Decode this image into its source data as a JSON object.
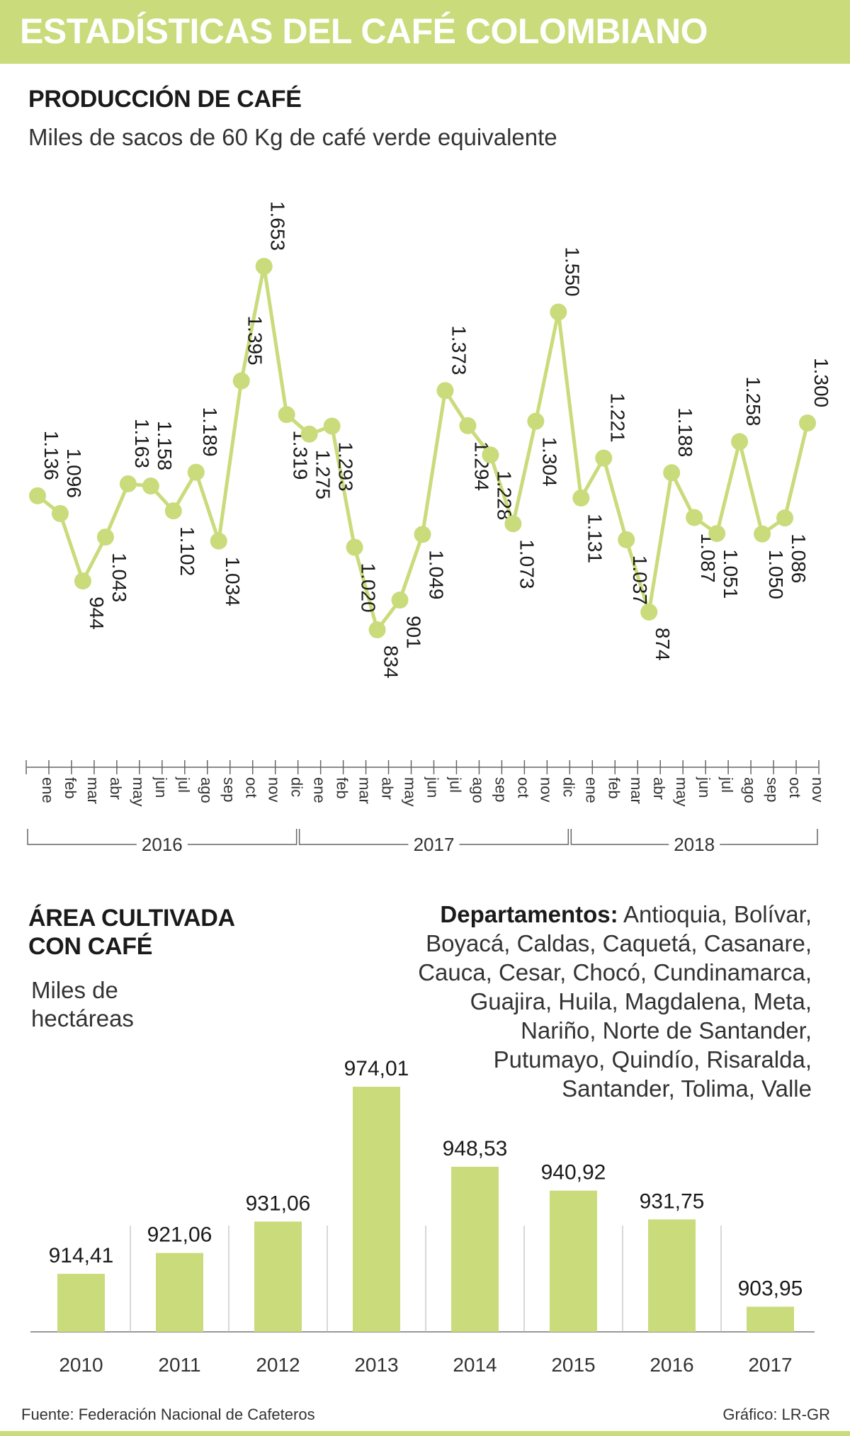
{
  "header": {
    "title": "ESTADÍSTICAS DEL CAFÉ COLOMBIANO"
  },
  "production": {
    "title": "PRODUCCIÓN DE CAFÉ",
    "subtitle": "Miles de sacos de 60 Kg de café verde equivalente"
  },
  "area": {
    "title_line1": "ÁREA CULTIVADA",
    "title_line2": "CON CAFÉ",
    "subtitle_line1": "Miles de",
    "subtitle_line2": "hectáreas"
  },
  "departments": {
    "label": "Departamentos:",
    "lines": [
      "Antioquia, Bolívar,",
      "Boyacá, Caldas, Caquetá, Casanare,",
      "Cauca, Cesar, Chocó, Cundinamarca,",
      "Guajira, Huila, Magdalena, Meta,",
      "Nariño, Norte de Santander,",
      "Putumayo, Quindío, Risaralda,",
      "Santander, Tolima, Valle"
    ]
  },
  "footer": {
    "source": "Fuente: Federación Nacional de Cafeteros",
    "credit": "Gráfico: LR-GR"
  },
  "colors": {
    "accent": "#c9db7a",
    "line": "#c9db7a",
    "text": "#1a1a1a"
  },
  "chart_data": [
    {
      "type": "line",
      "title": "PRODUCCIÓN DE CAFÉ",
      "ylabel": "Miles de sacos de 60 Kg de café verde equivalente",
      "x": [
        "ene",
        "feb",
        "mar",
        "abr",
        "may",
        "jun",
        "jul",
        "ago",
        "sep",
        "oct",
        "nov",
        "dic",
        "ene",
        "feb",
        "mar",
        "abr",
        "may",
        "jun",
        "jul",
        "ago",
        "sep",
        "oct",
        "nov",
        "dic",
        "ene",
        "feb",
        "mar",
        "abr",
        "may",
        "jun",
        "jul",
        "ago",
        "sep",
        "oct",
        "nov"
      ],
      "values": [
        1136,
        1096,
        944,
        1043,
        1163,
        1158,
        1102,
        1189,
        1034,
        1395,
        1653,
        1319,
        1275,
        1293,
        1020,
        834,
        901,
        1049,
        1373,
        1294,
        1228,
        1073,
        1304,
        1550,
        1131,
        1221,
        1037,
        874,
        1188,
        1087,
        1051,
        1258,
        1050,
        1086,
        1300
      ],
      "labels": [
        "1.136",
        "1.096",
        "944",
        "1.043",
        "1.163",
        "1.158",
        "1.102",
        "1.189",
        "1.034",
        "1.395",
        "1.653",
        "1.319",
        "1.275",
        "1.293",
        "1.020",
        "834",
        "901",
        "1.049",
        "1.373",
        "1.294",
        "1.228",
        "1.073",
        "1.304",
        "1.550",
        "1.131",
        "1.221",
        "1.037",
        "874",
        "1.188",
        "1.087",
        "1.051",
        "1.258",
        "1.050",
        "1.086",
        "1.300"
      ],
      "label_side": [
        "a",
        "a",
        "b",
        "b",
        "a",
        "a",
        "b",
        "a",
        "b",
        "a",
        "a",
        "b",
        "b",
        "b",
        "b",
        "b",
        "b",
        "b",
        "a",
        "b",
        "b",
        "b",
        "b",
        "a",
        "b",
        "a",
        "b",
        "b",
        "a",
        "b",
        "b",
        "a",
        "b",
        "b",
        "a"
      ],
      "year_groups": [
        {
          "label": "2016",
          "start": 0,
          "end": 11
        },
        {
          "label": "2017",
          "start": 12,
          "end": 23
        },
        {
          "label": "2018",
          "start": 24,
          "end": 34
        }
      ],
      "ylim": [
        834,
        1653
      ],
      "grid": false
    },
    {
      "type": "bar",
      "title": "ÁREA CULTIVADA CON CAFÉ",
      "ylabel": "Miles de hectáreas",
      "categories": [
        "2010",
        "2011",
        "2012",
        "2013",
        "2014",
        "2015",
        "2016",
        "2017"
      ],
      "values": [
        914.41,
        921.06,
        931.06,
        974.01,
        948.53,
        940.92,
        931.75,
        903.95
      ],
      "labels": [
        "914,41",
        "921,06",
        "931,06",
        "974,01",
        "948,53",
        "940,92",
        "931,75",
        "903,95"
      ],
      "grid": false
    }
  ]
}
